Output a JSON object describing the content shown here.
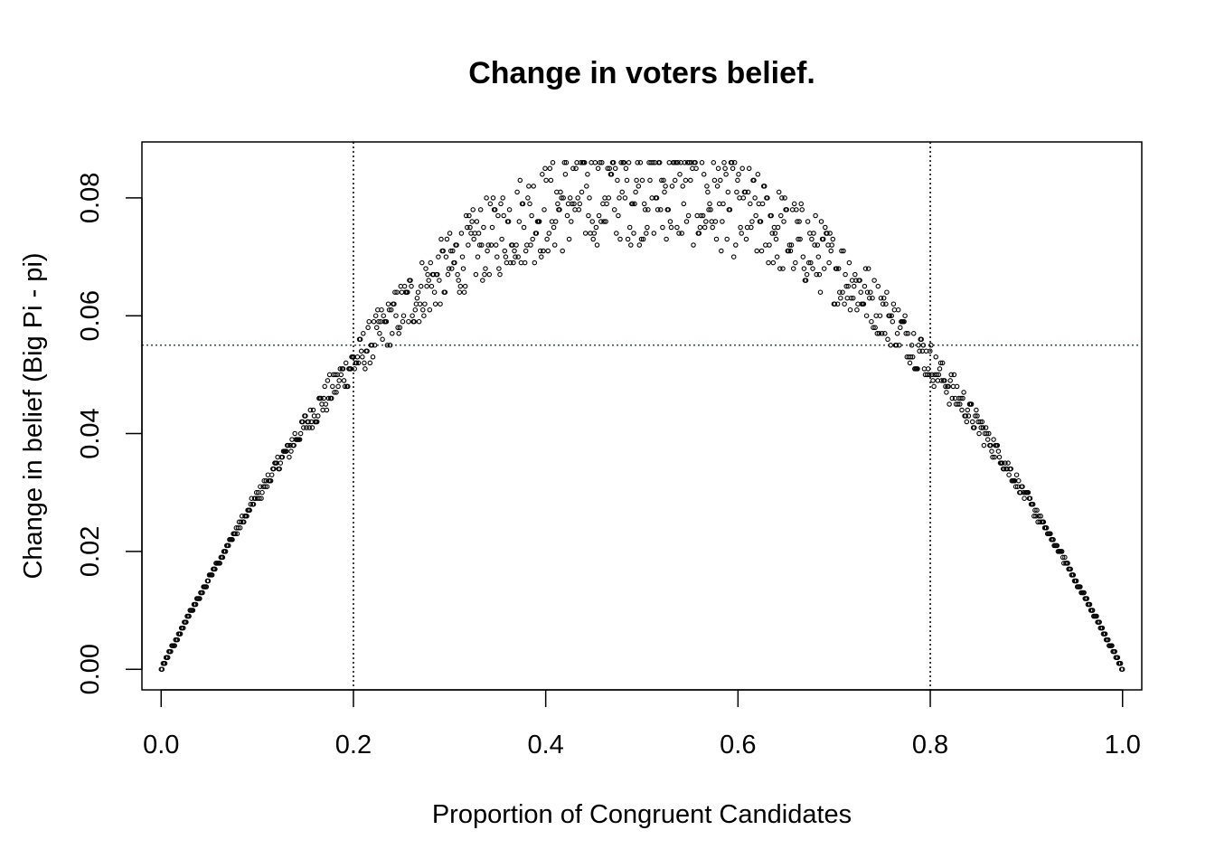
{
  "chart_data": {
    "type": "scatter",
    "title": "Change in voters belief.",
    "xlabel": "Proportion of Congruent Candidates",
    "ylabel": "Change in belief (Big Pi - pi)",
    "xlim": [
      -0.02,
      1.02
    ],
    "ylim": [
      -0.0035,
      0.0895
    ],
    "x_ticks": [
      "0.0",
      "0.2",
      "0.4",
      "0.6",
      "0.8",
      "1.0"
    ],
    "y_ticks": [
      "0.00",
      "0.02",
      "0.04",
      "0.06",
      "0.08"
    ],
    "grid": false,
    "reference_lines": {
      "vertical": [
        0.2,
        0.8
      ],
      "horizontal": [
        0.055
      ]
    },
    "colors": {
      "points": "#000000",
      "vertical_lines": "#000000",
      "horizontal_line": "#2f4f4f"
    },
    "series": [
      {
        "model": "y = 0.325 * x * (1 - x) with noise growing toward x = 0.5",
        "x_start": 0.0,
        "x_end": 1.0,
        "n_points": 1000,
        "y_min": 0.0,
        "y_max": 0.086
      }
    ]
  }
}
